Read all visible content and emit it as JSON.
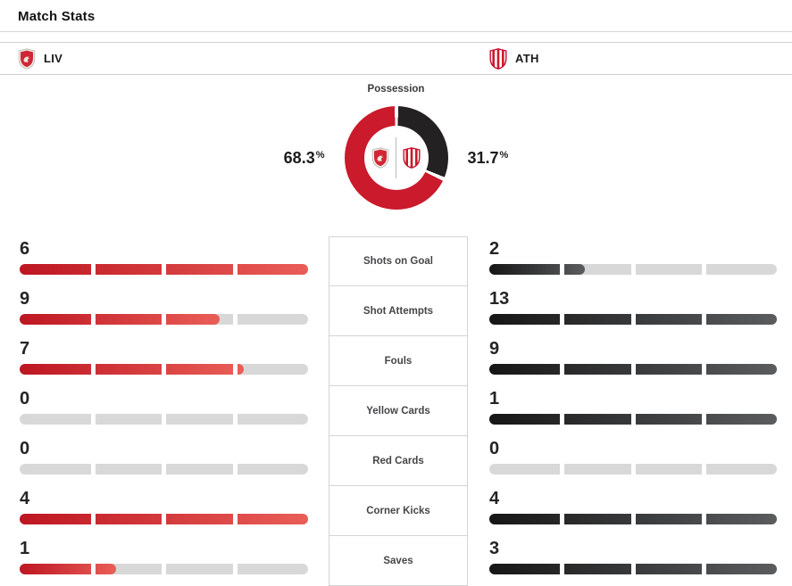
{
  "header": {
    "title": "Match Stats"
  },
  "teams": {
    "home": {
      "abbr": "LIV"
    },
    "away": {
      "abbr": "ATH"
    }
  },
  "possession": {
    "label": "Possession",
    "home_pct": "68.3",
    "away_pct": "31.7",
    "pct_symbol": "%",
    "home_value": 68.3,
    "away_value": 31.7
  },
  "colors": {
    "home": "#ca1a2c",
    "away": "#242122",
    "home_bar_start": "#bd1622",
    "home_bar_end": "#ea5e57",
    "away_bar_start": "#161616",
    "away_bar_end": "#5a5c5e",
    "track": "#d8d8d8"
  },
  "stats": [
    {
      "label": "Shots on Goal",
      "home": 6,
      "away": 2,
      "home_fill": 100,
      "away_fill": 33.3
    },
    {
      "label": "Shot Attempts",
      "home": 9,
      "away": 13,
      "home_fill": 69.2,
      "away_fill": 100
    },
    {
      "label": "Fouls",
      "home": 7,
      "away": 9,
      "home_fill": 77.8,
      "away_fill": 100
    },
    {
      "label": "Yellow Cards",
      "home": 0,
      "away": 1,
      "home_fill": 0,
      "away_fill": 100
    },
    {
      "label": "Red Cards",
      "home": 0,
      "away": 0,
      "home_fill": 0,
      "away_fill": 0
    },
    {
      "label": "Corner Kicks",
      "home": 4,
      "away": 4,
      "home_fill": 100,
      "away_fill": 100
    },
    {
      "label": "Saves",
      "home": 1,
      "away": 3,
      "home_fill": 33.3,
      "away_fill": 100
    }
  ]
}
